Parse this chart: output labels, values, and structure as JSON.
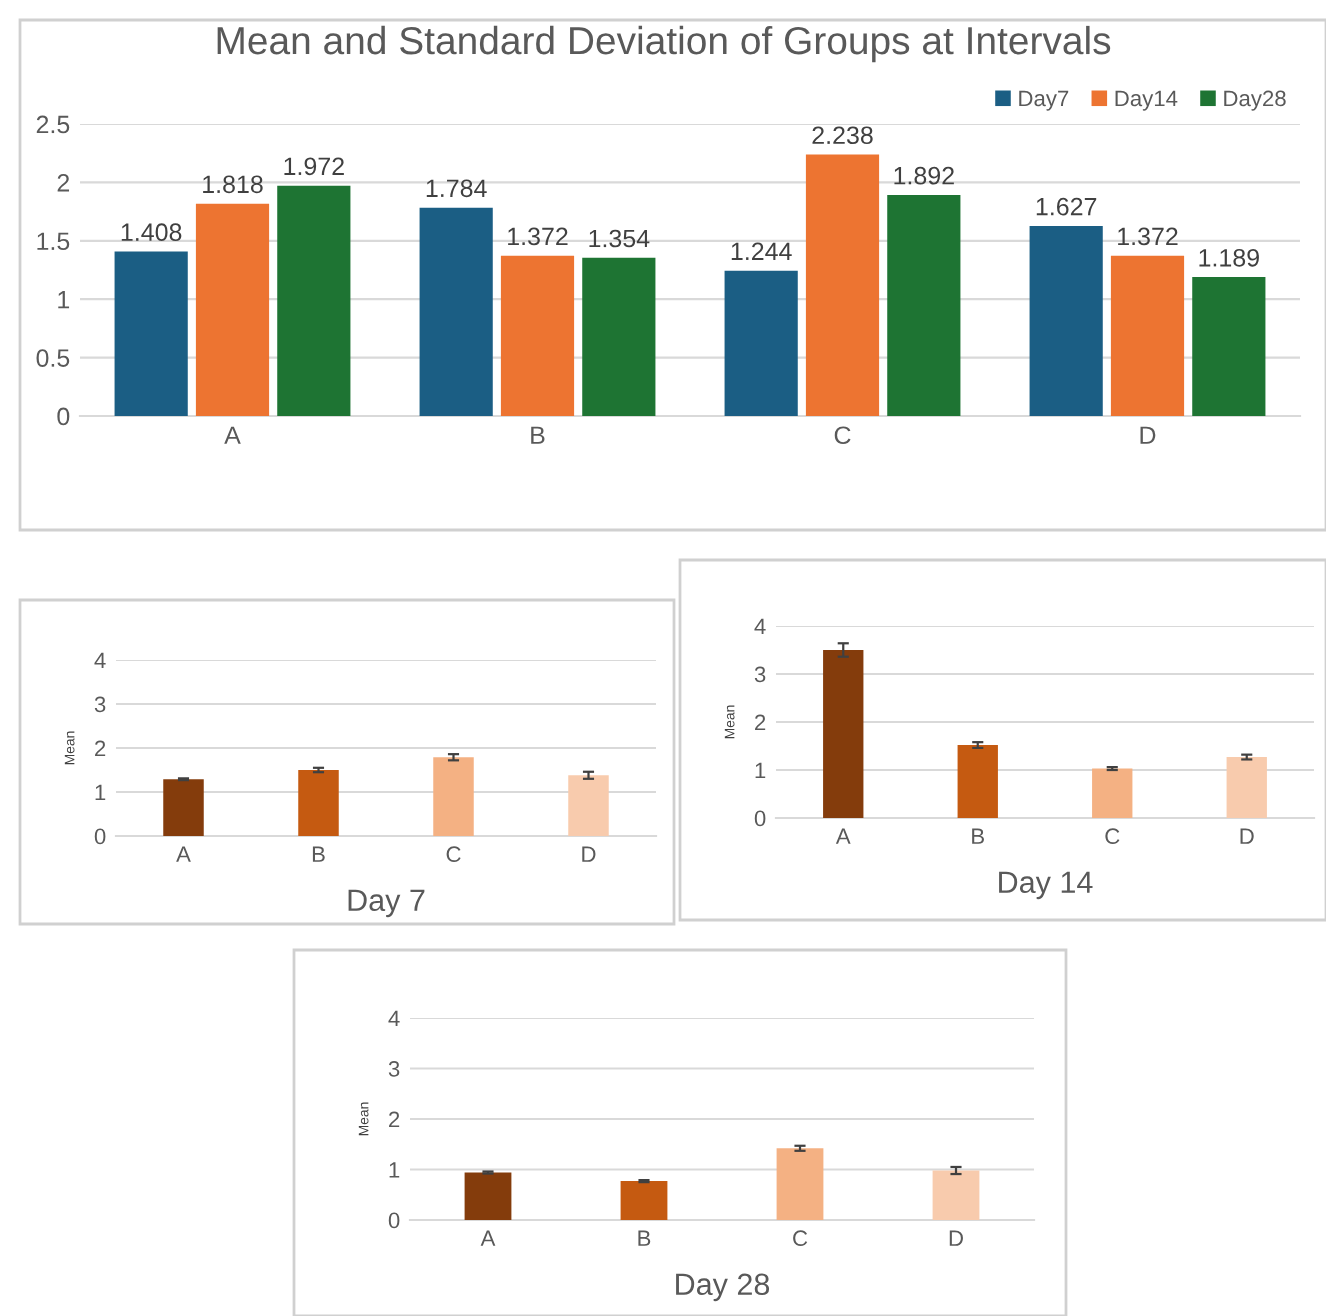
{
  "chart_data": [
    {
      "type": "bar",
      "title": "Mean and Standard Deviation of Groups at Intervals",
      "categories": [
        "A",
        "B",
        "C",
        "D"
      ],
      "series": [
        {
          "name": "Day7",
          "color": "#1b5e84",
          "values": [
            1.408,
            1.784,
            1.244,
            1.627
          ]
        },
        {
          "name": "Day14",
          "color": "#ed7431",
          "values": [
            1.818,
            1.372,
            2.238,
            1.372
          ]
        },
        {
          "name": "Day28",
          "color": "#1e7433",
          "values": [
            1.972,
            1.354,
            1.892,
            1.189
          ]
        }
      ],
      "ylim": [
        0,
        2.5
      ],
      "yticks": [
        0,
        0.5,
        1,
        1.5,
        2,
        2.5
      ],
      "grid": "y",
      "legend": "top right",
      "data_labels": true
    },
    {
      "type": "bar",
      "xlabel": "Day 7",
      "ylabel": "Mean",
      "categories": [
        "A",
        "B",
        "C",
        "D"
      ],
      "values": [
        1.29,
        1.5,
        1.79,
        1.38
      ],
      "errors": [
        0.02,
        0.05,
        0.07,
        0.08
      ],
      "colors": [
        "#843c0c",
        "#c55a11",
        "#f4b183",
        "#f8cbad"
      ],
      "ylim": [
        0,
        4
      ],
      "yticks": [
        0,
        1,
        2,
        3,
        4
      ],
      "grid": "y"
    },
    {
      "type": "bar",
      "xlabel": "Day 14",
      "ylabel": "Mean",
      "categories": [
        "A",
        "B",
        "C",
        "D"
      ],
      "values": [
        3.5,
        1.52,
        1.03,
        1.27
      ],
      "errors": [
        0.14,
        0.06,
        0.03,
        0.05
      ],
      "colors": [
        "#843c0c",
        "#c55a11",
        "#f4b183",
        "#f8cbad"
      ],
      "ylim": [
        0,
        4
      ],
      "yticks": [
        0,
        1,
        2,
        3,
        4
      ],
      "grid": "y"
    },
    {
      "type": "bar",
      "xlabel": "Day 28",
      "ylabel": "Mean",
      "categories": [
        "A",
        "B",
        "C",
        "D"
      ],
      "values": [
        0.94,
        0.77,
        1.42,
        0.98
      ],
      "errors": [
        0.02,
        0.02,
        0.05,
        0.07
      ],
      "colors": [
        "#843c0c",
        "#c55a11",
        "#f4b183",
        "#f8cbad"
      ],
      "ylim": [
        0,
        4
      ],
      "yticks": [
        0,
        1,
        2,
        3,
        4
      ],
      "grid": "y"
    }
  ]
}
